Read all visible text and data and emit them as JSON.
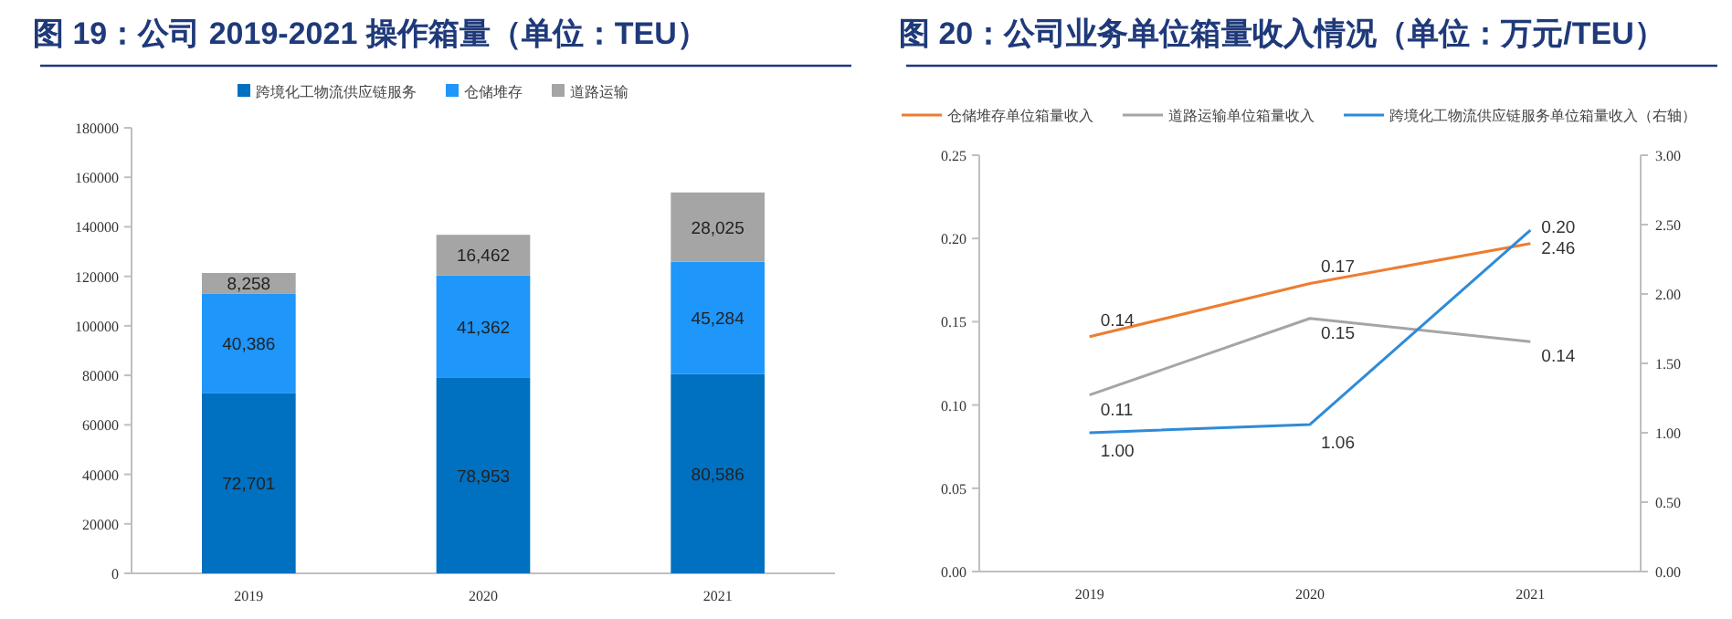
{
  "chart_data": [
    {
      "type": "bar",
      "stacked": true,
      "title": "图 19：公司 2019-2021 操作箱量（单位：TEU）",
      "legend": "top",
      "grid": false,
      "categories": [
        "2019",
        "2020",
        "2021"
      ],
      "ylim": [
        0,
        180000
      ],
      "yticks": [
        0,
        20000,
        40000,
        60000,
        80000,
        100000,
        120000,
        140000,
        160000,
        180000
      ],
      "series": [
        {
          "name": "跨境化工物流供应链服务",
          "color": "#0070c0",
          "values": [
            72701,
            78953,
            80586
          ],
          "value_labels": [
            "72,701",
            "78,953",
            "80,586"
          ]
        },
        {
          "name": "仓储堆存",
          "color": "#1e96fa",
          "values": [
            40386,
            41362,
            45284
          ],
          "value_labels": [
            "40,386",
            "41,362",
            "45,284"
          ]
        },
        {
          "name": "道路运输",
          "color": "#a5a5a5",
          "values": [
            8258,
            16462,
            28025
          ],
          "value_labels": [
            "8,258",
            "16,462",
            "28,025"
          ]
        }
      ]
    },
    {
      "type": "line",
      "title": "图 20：公司业务单位箱量收入情况（单位：万元/TEU）",
      "legend": "top",
      "grid": false,
      "categories": [
        "2019",
        "2020",
        "2021"
      ],
      "ylim": [
        0,
        0.25
      ],
      "yticks": [
        {
          "value": 0,
          "label": "0.00"
        },
        {
          "value": 0.05,
          "label": "0.05"
        },
        {
          "value": 0.1,
          "label": "0.10"
        },
        {
          "value": 0.15,
          "label": "0.15"
        },
        {
          "value": 0.2,
          "label": "0.20"
        },
        {
          "value": 0.25,
          "label": "0.25"
        }
      ],
      "y2lim": [
        0,
        3
      ],
      "y2ticks": [
        {
          "value": 0,
          "label": "0.00"
        },
        {
          "value": 0.5,
          "label": "0.50"
        },
        {
          "value": 1,
          "label": "1.00"
        },
        {
          "value": 1.5,
          "label": "1.50"
        },
        {
          "value": 2,
          "label": "2.00"
        },
        {
          "value": 2.5,
          "label": "2.50"
        },
        {
          "value": 3,
          "label": "3.00"
        }
      ],
      "series": [
        {
          "name": "仓储堆存单位箱量收入",
          "color": "#ed7d31",
          "values": [
            0.141,
            0.173,
            0.197
          ],
          "value_labels": [
            "0.14",
            "0.17",
            "0.20"
          ]
        },
        {
          "name": "道路运输单位箱量收入",
          "color": "#a5a5a5",
          "values": [
            0.106,
            0.152,
            0.138
          ],
          "value_labels": [
            "0.11",
            "0.15",
            "0.14"
          ]
        },
        {
          "name": "跨境化工物流供应链服务单位箱量收入（右轴）",
          "color": "#2e8bd8",
          "axis": "y2",
          "values": [
            1.0,
            1.06,
            2.46
          ],
          "value_labels": [
            "1.00",
            "1.06",
            "2.46"
          ]
        }
      ]
    }
  ]
}
